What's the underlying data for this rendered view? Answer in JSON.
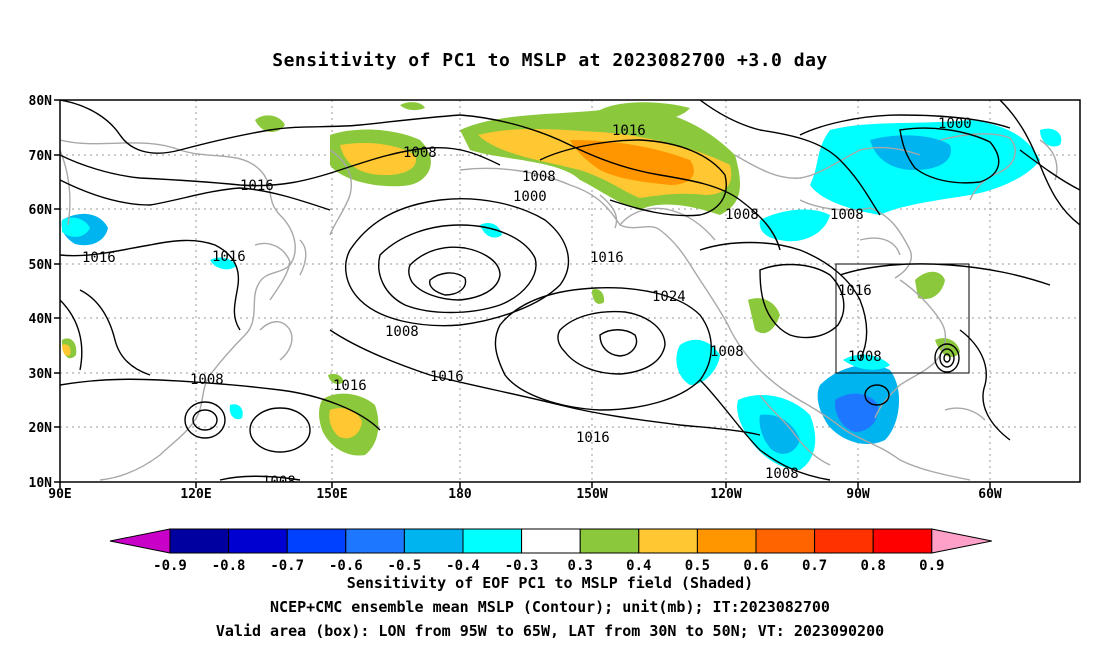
{
  "title": "Sensitivity of PC1 to MSLP at 2023082700 +3.0 day",
  "lat_labels": [
    "80N",
    "70N",
    "60N",
    "50N",
    "40N",
    "30N",
    "20N",
    "10N"
  ],
  "lon_labels": [
    "90E",
    "120E",
    "150E",
    "180",
    "150W",
    "120W",
    "90W",
    "60W"
  ],
  "contour_labels": [
    "1016",
    "1008",
    "1016",
    "1008",
    "1000",
    "1008",
    "1008",
    "1000",
    "1016",
    "1016",
    "1016",
    "1024",
    "1008",
    "1016",
    "1008",
    "1008",
    "1016",
    "1016",
    "1008",
    "1008",
    "1008",
    "1016"
  ],
  "colorbar": {
    "labels": [
      "-0.9",
      "-0.8",
      "-0.7",
      "-0.6",
      "-0.5",
      "-0.4",
      "-0.3",
      "0.3",
      "0.4",
      "0.5",
      "0.6",
      "0.7",
      "0.8",
      "0.9"
    ],
    "colors": [
      "#c800c8",
      "#0000a0",
      "#0000d0",
      "#0040ff",
      "#1e78ff",
      "#00b4f0",
      "#00ffff",
      "#ffffff",
      "#8cc83c",
      "#ffc832",
      "#ff9600",
      "#ff6400",
      "#ff3200",
      "#ff0000",
      "#ffa0c8"
    ]
  },
  "captions": [
    "Sensitivity of EOF PC1 to MSLP field (Shaded)",
    "NCEP+CMC ensemble mean MSLP (Contour); unit(mb); IT:2023082700",
    "Valid area (box): LON from 95W to 65W, LAT from 30N to 50N; VT: 2023090200"
  ]
}
